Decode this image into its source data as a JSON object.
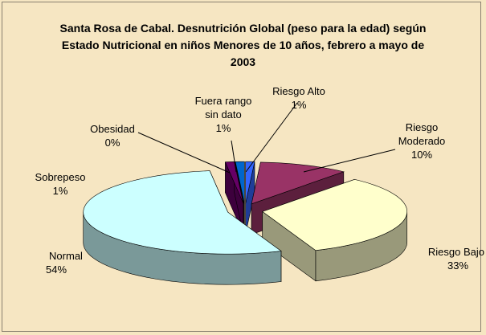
{
  "chart_data": {
    "type": "pie3d",
    "title": "Santa Rosa de Cabal. Desnutrición Global (peso para la edad) según Estado Nutricional en niños Menores de 10 años, febrero a mayo de 2003",
    "categories": [
      "Riesgo Alto",
      "Riesgo Moderado",
      "Riesgo Bajo",
      "Normal",
      "Sobrepeso",
      "Obesidad",
      "Fuera rango sin dato"
    ],
    "values": [
      1,
      10,
      33,
      54,
      1,
      0,
      1
    ],
    "value_labels": [
      "1%",
      "10%",
      "33%",
      "54%",
      "1%",
      "0%",
      "1%"
    ],
    "colors": [
      "#3366ff",
      "#993366",
      "#ffffcc",
      "#ccffff",
      "#660066",
      "#ff8080",
      "#0066cc"
    ]
  }
}
